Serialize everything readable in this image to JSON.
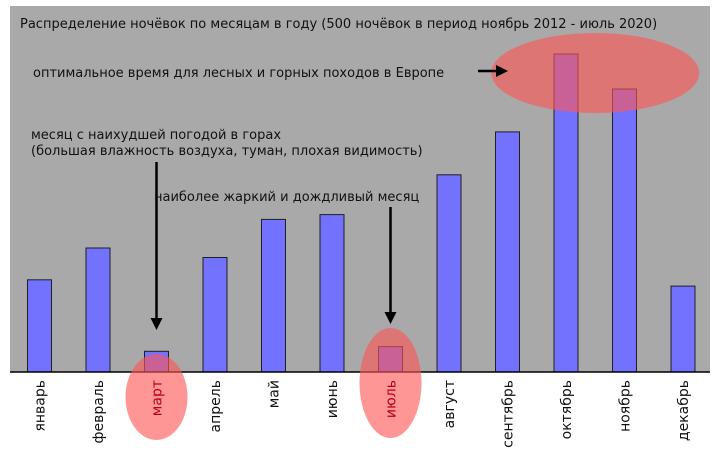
{
  "colors": {
    "plot_background": "#a9a9a9",
    "bar_fill": "#7272ff",
    "bar_stroke": "#1f1f1f",
    "highlight": "#ff5555",
    "highlight_label": "#b3001b",
    "text": "#111111"
  },
  "chart_data": {
    "type": "bar",
    "title": "Распределение ночёвок по месяцам в году (500 ночёвок в период ноябрь 2012 - июль 2020)",
    "xlabel": "",
    "ylabel": "",
    "ylim": [
      0,
      100
    ],
    "grid": false,
    "legend": "none",
    "categories": [
      "январь",
      "февраль",
      "март",
      "апрель",
      "май",
      "июнь",
      "июль",
      "август",
      "сентябрь",
      "октябрь",
      "ноябрь",
      "декабрь"
    ],
    "values": [
      29,
      39,
      6.5,
      36,
      48,
      49.5,
      8,
      62,
      75.5,
      100,
      89,
      27
    ],
    "highlighted_categories": [
      "март",
      "июль",
      "октябрь",
      "ноябрь"
    ],
    "annotations": [
      {
        "text": "оптимальное время для лесных и горных походов в Европе",
        "target": "октябрь–ноябрь"
      },
      {
        "text": "месяц с наихудшей погодой в горах",
        "text2": "(большая влажность воздуха, туман, плохая видимость)",
        "target": "март"
      },
      {
        "text": "наиболее жаркий и дождливый месяц",
        "target": "июль"
      }
    ]
  }
}
